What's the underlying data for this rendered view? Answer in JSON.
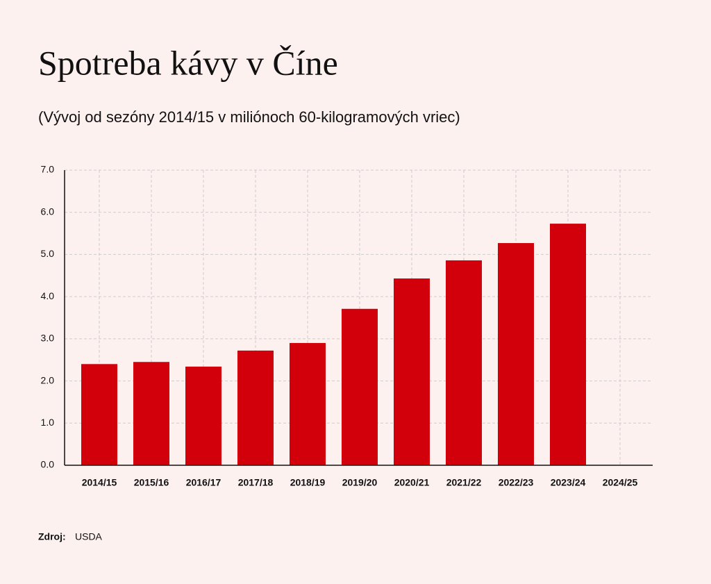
{
  "chart_data": {
    "type": "bar",
    "title": "Spotreba kávy v Číne",
    "subtitle": "(Vývoj od sezóny 2014/15 v miliónoch 60-kilogramových vriec)",
    "categories": [
      "2014/15",
      "2015/16",
      "2016/17",
      "2017/18",
      "2018/19",
      "2019/20",
      "2020/21",
      "2021/22",
      "2022/23",
      "2023/24",
      "2024/25"
    ],
    "values": [
      2.4,
      2.45,
      2.34,
      2.72,
      2.9,
      3.71,
      4.43,
      4.86,
      5.27,
      5.73,
      null
    ],
    "color": "#d1000a",
    "ylim": [
      0,
      7
    ],
    "yticks": [
      {
        "value": 0,
        "label": "0.0"
      },
      {
        "value": 1,
        "label": "1.0"
      },
      {
        "value": 2,
        "label": "2.0"
      },
      {
        "value": 3,
        "label": "3.0"
      },
      {
        "value": 4,
        "label": "4.0"
      },
      {
        "value": 5,
        "label": "5.0"
      },
      {
        "value": 6,
        "label": "6.0"
      },
      {
        "value": 7,
        "label": "7.0"
      }
    ],
    "grid": true,
    "source_label": "Zdroj:",
    "source": "USDA"
  }
}
